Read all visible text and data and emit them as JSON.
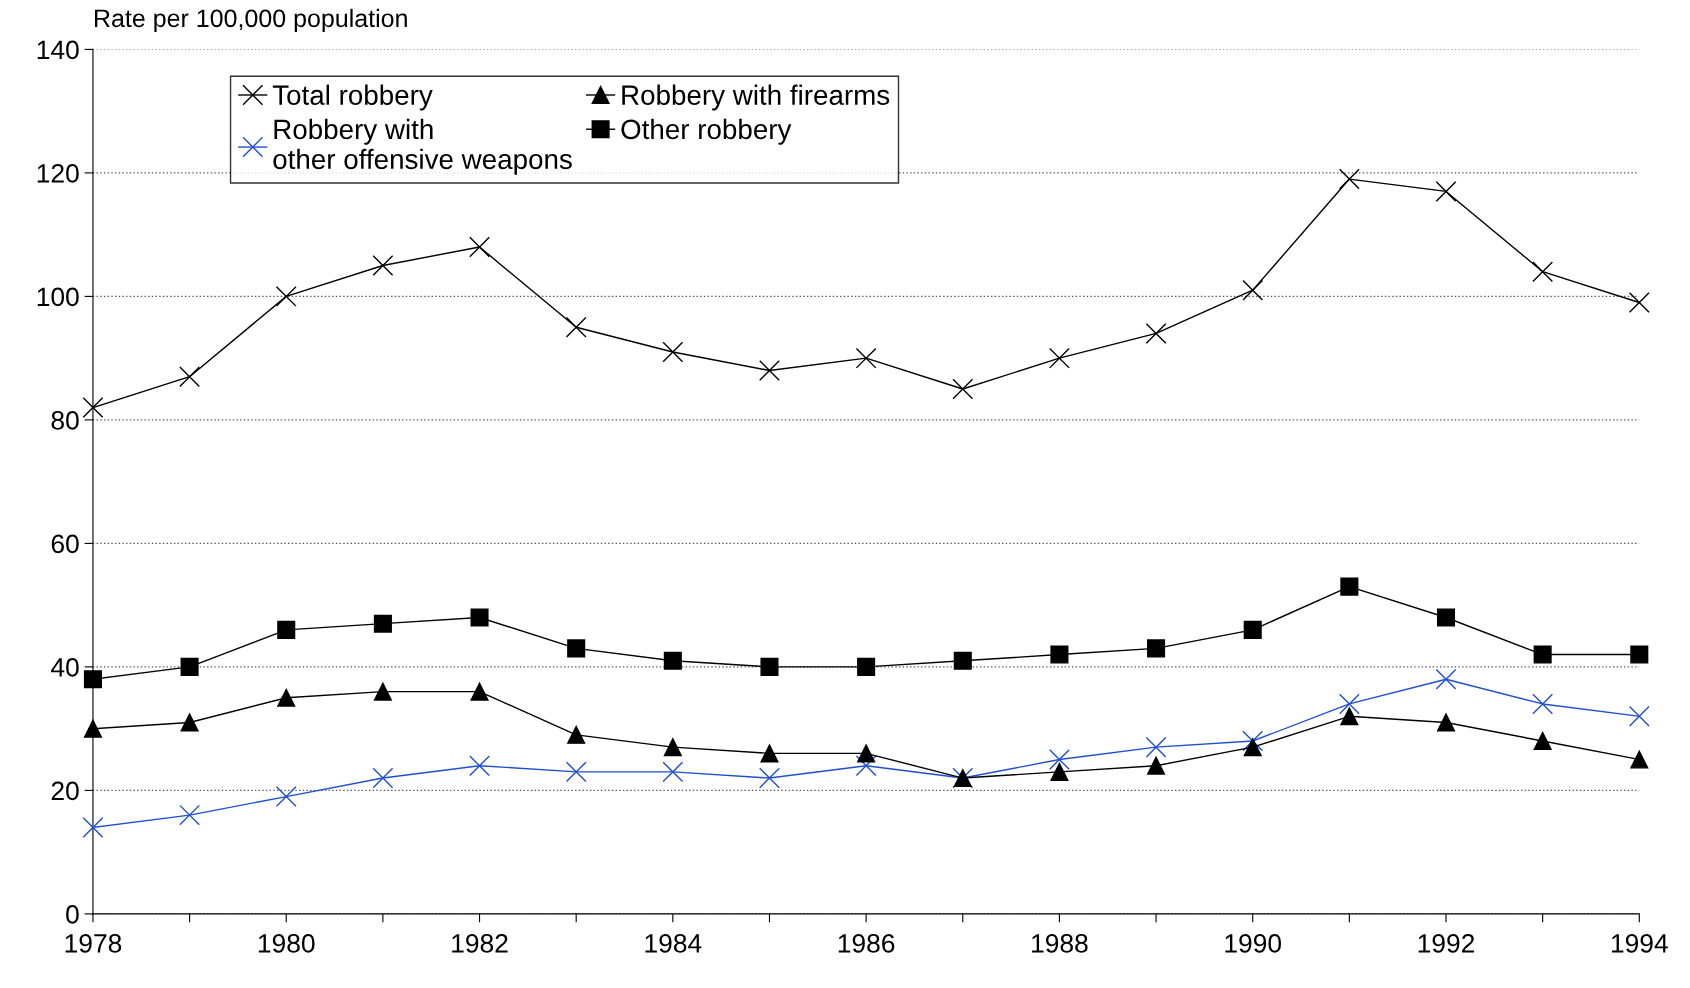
{
  "chart_data": {
    "type": "line",
    "ylabel": "Rate per 100,000 population",
    "x": [
      1978,
      1979,
      1980,
      1981,
      1982,
      1983,
      1984,
      1985,
      1986,
      1987,
      1988,
      1989,
      1990,
      1991,
      1992,
      1993,
      1994
    ],
    "series": [
      {
        "name": "Total robbery",
        "color": "#000000",
        "marker": "cross",
        "values": [
          82,
          87,
          100,
          105,
          108,
          95,
          91,
          88,
          90,
          85,
          90,
          94,
          101,
          119,
          117,
          104,
          99
        ]
      },
      {
        "name": "Robbery with\nother offensive weapons",
        "color": "#1f4fd0",
        "marker": "cross",
        "values": [
          14,
          16,
          19,
          22,
          24,
          23,
          23,
          22,
          24,
          22,
          25,
          27,
          28,
          34,
          38,
          34,
          32
        ]
      },
      {
        "name": "Robbery with firearms",
        "color": "#000000",
        "marker": "triangle",
        "values": [
          30,
          31,
          35,
          36,
          36,
          29,
          27,
          26,
          26,
          22,
          23,
          24,
          27,
          32,
          31,
          28,
          25
        ]
      },
      {
        "name": "Other robbery",
        "color": "#000000",
        "marker": "square",
        "values": [
          38,
          40,
          46,
          47,
          48,
          43,
          41,
          40,
          40,
          41,
          42,
          43,
          46,
          53,
          48,
          42,
          42
        ]
      }
    ],
    "xlim": [
      1978,
      1994
    ],
    "xticks": [
      1978,
      {
        "value": 1979,
        "label": null
      },
      1980,
      {
        "value": 1981,
        "label": null
      },
      1982,
      {
        "value": 1983,
        "label": null
      },
      1984,
      {
        "value": 1985,
        "label": null
      },
      1986,
      {
        "value": 1987,
        "label": null
      },
      1988,
      {
        "value": 1989,
        "label": null
      },
      1990,
      {
        "value": 1991,
        "label": null
      },
      1992,
      {
        "value": 1993,
        "label": null
      },
      1994
    ],
    "ylim": [
      0,
      140
    ],
    "yticks": [
      0,
      20,
      40,
      60,
      80,
      100,
      120,
      140
    ],
    "grid": "y",
    "legend": "top left",
    "line_style": "solid"
  }
}
